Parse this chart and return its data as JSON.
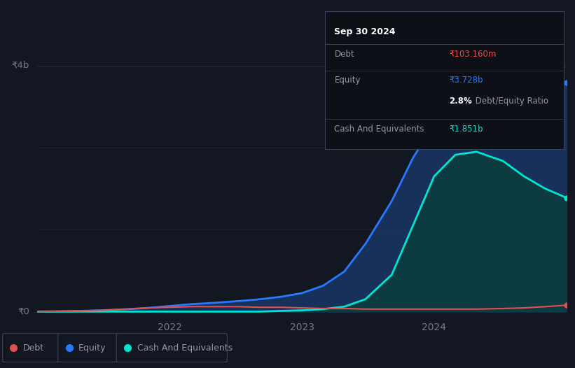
{
  "bg_color": "#131722",
  "chart_bg": "#131722",
  "grid_color": "#2a2e39",
  "label_color": "#787b86",
  "y_label_4b": "₹4b",
  "y_label_0": "₹0",
  "x_ticks_labels": [
    "2022",
    "2023",
    "2024"
  ],
  "x_ticks_pos": [
    0.25,
    0.5,
    0.75
  ],
  "ylim_min": -0.08,
  "ylim_max": 4.35,
  "xlim_min": 0.0,
  "xlim_max": 1.0,
  "debt_color": "#e05050",
  "equity_color": "#2979ff",
  "cash_color": "#00e5d1",
  "equity_fill_color": "#1a3a6e",
  "cash_fill_color": "#0a3d3d",
  "legend_items": [
    {
      "label": "Debt",
      "color": "#e05050"
    },
    {
      "label": "Equity",
      "color": "#2979ff"
    },
    {
      "label": "Cash And Equivalents",
      "color": "#00e5d1"
    }
  ],
  "tooltip_title": "Sep 30 2024",
  "tooltip_debt_label": "Debt",
  "tooltip_debt_value": "₹103.160m",
  "tooltip_debt_color": "#e05050",
  "tooltip_equity_label": "Equity",
  "tooltip_equity_value": "₹3.728b",
  "tooltip_equity_color": "#2979ff",
  "tooltip_ratio_bold": "2.8%",
  "tooltip_ratio_rest": " Debt/Equity Ratio",
  "tooltip_cash_label": "Cash And Equivalents",
  "tooltip_cash_value": "₹1.851b",
  "tooltip_cash_color": "#00e5d1",
  "x_positions": [
    0.0,
    0.04,
    0.08,
    0.12,
    0.17,
    0.21,
    0.25,
    0.29,
    0.33,
    0.38,
    0.42,
    0.46,
    0.5,
    0.54,
    0.58,
    0.62,
    0.67,
    0.71,
    0.75,
    0.79,
    0.83,
    0.88,
    0.92,
    0.96,
    1.0
  ],
  "debt_y": [
    0.0,
    0.005,
    0.01,
    0.02,
    0.04,
    0.06,
    0.07,
    0.08,
    0.08,
    0.08,
    0.07,
    0.07,
    0.06,
    0.05,
    0.05,
    0.04,
    0.04,
    0.04,
    0.04,
    0.04,
    0.04,
    0.05,
    0.06,
    0.08,
    0.103
  ],
  "equity_y": [
    0.0,
    0.005,
    0.01,
    0.02,
    0.04,
    0.06,
    0.09,
    0.12,
    0.14,
    0.17,
    0.2,
    0.24,
    0.3,
    0.42,
    0.65,
    1.1,
    1.8,
    2.5,
    3.05,
    3.3,
    3.5,
    3.6,
    3.65,
    3.7,
    3.728
  ],
  "cash_y": [
    0.0,
    0.0,
    0.0,
    0.0,
    0.0,
    0.0,
    0.0,
    0.0,
    0.0,
    0.0,
    0.0,
    0.01,
    0.02,
    0.04,
    0.08,
    0.2,
    0.6,
    1.4,
    2.2,
    2.55,
    2.6,
    2.45,
    2.2,
    2.0,
    1.851
  ]
}
